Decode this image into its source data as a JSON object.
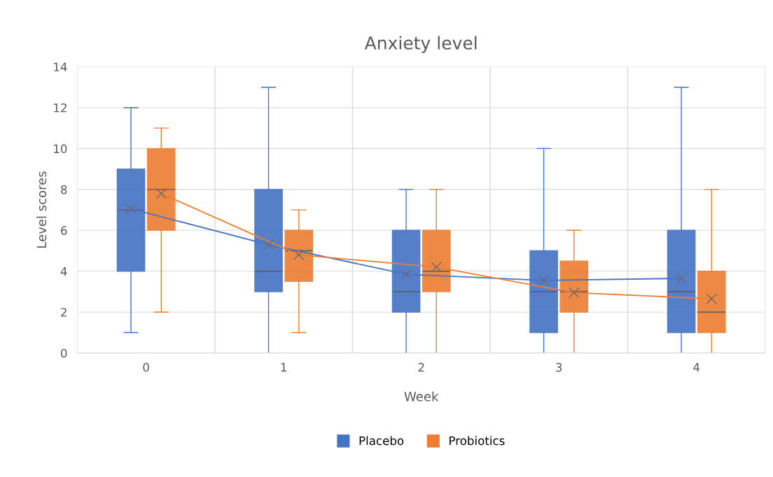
{
  "chart_data": {
    "type": "box",
    "title": "Anxiety level",
    "xlabel": "Week",
    "ylabel": "Level scores",
    "categories": [
      "0",
      "1",
      "2",
      "3",
      "4"
    ],
    "ylim": [
      0,
      14
    ],
    "yticks": [
      0,
      2,
      4,
      6,
      8,
      10,
      12,
      14
    ],
    "grid": true,
    "legend": "bottom",
    "marker": "cross",
    "series": [
      {
        "name": "Placebo",
        "color": "#4472c4",
        "boxes": [
          {
            "low": 1,
            "q1": 4,
            "median": 7,
            "q3": 9,
            "high": 12,
            "mean": 7.05
          },
          {
            "low": 0,
            "q1": 3,
            "median": 4,
            "q3": 8,
            "high": 13,
            "mean": 5.3
          },
          {
            "low": 0,
            "q1": 2,
            "median": 3,
            "q3": 6,
            "high": 8,
            "mean": 3.85
          },
          {
            "low": 0,
            "q1": 1,
            "median": 3,
            "q3": 5,
            "high": 10,
            "mean": 3.55
          },
          {
            "low": 0,
            "q1": 1,
            "median": 3,
            "q3": 6,
            "high": 13,
            "mean": 3.65
          }
        ]
      },
      {
        "name": "Probiotics",
        "color": "#ed7d31",
        "boxes": [
          {
            "low": 2,
            "q1": 6,
            "median": 8,
            "q3": 10,
            "high": 11,
            "mean": 7.8
          },
          {
            "low": 1,
            "q1": 3.5,
            "median": 5,
            "q3": 6,
            "high": 7,
            "mean": 4.8
          },
          {
            "low": 0,
            "q1": 3,
            "median": 4,
            "q3": 6,
            "high": 8,
            "mean": 4.2
          },
          {
            "low": 0,
            "q1": 2,
            "median": 3,
            "q3": 4.5,
            "high": 6,
            "mean": 2.95
          },
          {
            "low": 0,
            "q1": 1,
            "median": 2,
            "q3": 4,
            "high": 8,
            "mean": 2.65
          }
        ]
      },
      {
        "type": "line",
        "marker": "none",
        "color": "#4472c4",
        "values": [
          7.05,
          5.3,
          3.85,
          3.55,
          3.65
        ]
      },
      {
        "type": "line",
        "marker": "none",
        "color": "#ed7d31",
        "values": [
          7.8,
          4.8,
          4.2,
          2.95,
          2.65
        ]
      }
    ]
  }
}
